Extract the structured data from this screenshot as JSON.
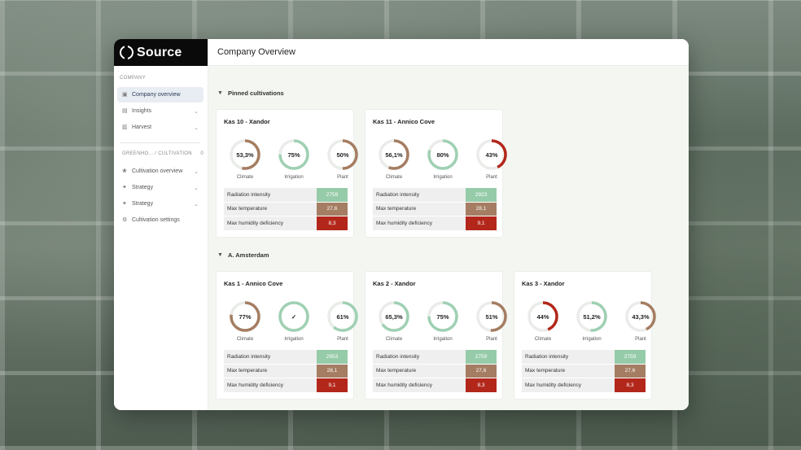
{
  "colors": {
    "green": "#96cba9",
    "brown": "#a57d62",
    "red": "#b3271b",
    "ring_track": "#e9ece8",
    "ring_green": "#9fd0b3",
    "ring_brown": "#a57d62",
    "ring_red": "#b3271b"
  },
  "app": {
    "logo_text": "Source"
  },
  "header": {
    "title": "Company Overview"
  },
  "sidebar": {
    "section_company": "COMPANY",
    "items": [
      {
        "label": "Company overview",
        "icon": "building-icon"
      },
      {
        "label": "Insights",
        "icon": "bar-chart-icon"
      },
      {
        "label": "Harvest",
        "icon": "crate-icon"
      }
    ],
    "section_cultivation": "GREENHO... / CULTIVATION",
    "section_cultivation_count": "0",
    "cultivation_items": [
      {
        "label": "Cultivation overview",
        "icon": "plant-icon"
      },
      {
        "label": "Strategy",
        "icon": "strategy-icon"
      },
      {
        "label": "Strategy",
        "icon": "strategy-icon"
      },
      {
        "label": "Cultivation settings",
        "icon": "gear-icon"
      }
    ]
  },
  "groups": [
    {
      "title": "Pinned cultivations",
      "cards": [
        {
          "title": "Kas 10 - Xandor",
          "gauges": [
            {
              "label": "Climate",
              "value": "53,3%",
              "percent": 53.3,
              "color": "brown"
            },
            {
              "label": "Irrigation",
              "value": "75%",
              "percent": 75,
              "color": "green"
            },
            {
              "label": "Plant",
              "value": "50%",
              "percent": 50,
              "color": "brown"
            }
          ],
          "metrics": [
            {
              "name": "Radiation intensity",
              "value": "2759",
              "color": "green"
            },
            {
              "name": "Max temperature",
              "value": "27,6",
              "color": "brown"
            },
            {
              "name": "Max humidity deficiency",
              "value": "8,3",
              "color": "red"
            }
          ]
        },
        {
          "title": "Kas 11 - Annico Cove",
          "gauges": [
            {
              "label": "Climate",
              "value": "56,1%",
              "percent": 56.1,
              "color": "brown"
            },
            {
              "label": "Irrigation",
              "value": "80%",
              "percent": 80,
              "color": "green"
            },
            {
              "label": "Plant",
              "value": "43%",
              "percent": 43,
              "color": "red"
            }
          ],
          "metrics": [
            {
              "name": "Radiation intensity",
              "value": "2923",
              "color": "green"
            },
            {
              "name": "Max temperature",
              "value": "28,1",
              "color": "brown"
            },
            {
              "name": "Max humidity deficiency",
              "value": "9,1",
              "color": "red"
            }
          ]
        }
      ]
    },
    {
      "title": "A. Amsterdam",
      "cards": [
        {
          "title": "Kas 1 - Annico Cove",
          "gauges": [
            {
              "label": "Climate",
              "value": "77%",
              "percent": 77,
              "color": "brown"
            },
            {
              "label": "Irrigation",
              "value": "✓",
              "percent": 100,
              "color": "green"
            },
            {
              "label": "Plant",
              "value": "61%",
              "percent": 61,
              "color": "green"
            }
          ],
          "metrics": [
            {
              "name": "Radiation intensity",
              "value": "2953",
              "color": "green"
            },
            {
              "name": "Max temperature",
              "value": "28,1",
              "color": "brown"
            },
            {
              "name": "Max humidity deficiency",
              "value": "9,1",
              "color": "red"
            }
          ]
        },
        {
          "title": "Kas 2 - Xandor",
          "gauges": [
            {
              "label": "Climate",
              "value": "65,3%",
              "percent": 65.3,
              "color": "green"
            },
            {
              "label": "Irrigation",
              "value": "75%",
              "percent": 75,
              "color": "green"
            },
            {
              "label": "Plant",
              "value": "51%",
              "percent": 51,
              "color": "brown"
            }
          ],
          "metrics": [
            {
              "name": "Radiation intensity",
              "value": "2759",
              "color": "green"
            },
            {
              "name": "Max temperature",
              "value": "27,6",
              "color": "brown"
            },
            {
              "name": "Max humidity deficiency",
              "value": "8,3",
              "color": "red"
            }
          ]
        },
        {
          "title": "Kas 3 - Xandor",
          "gauges": [
            {
              "label": "Climate",
              "value": "44%",
              "percent": 44,
              "color": "red"
            },
            {
              "label": "Irrigation",
              "value": "51,2%",
              "percent": 51.2,
              "color": "green"
            },
            {
              "label": "Plant",
              "value": "43,3%",
              "percent": 43.3,
              "color": "brown"
            }
          ],
          "metrics": [
            {
              "name": "Radiation intensity",
              "value": "2759",
              "color": "green"
            },
            {
              "name": "Max temperature",
              "value": "27,6",
              "color": "brown"
            },
            {
              "name": "Max humidity deficiency",
              "value": "8,3",
              "color": "red"
            }
          ]
        }
      ]
    }
  ]
}
